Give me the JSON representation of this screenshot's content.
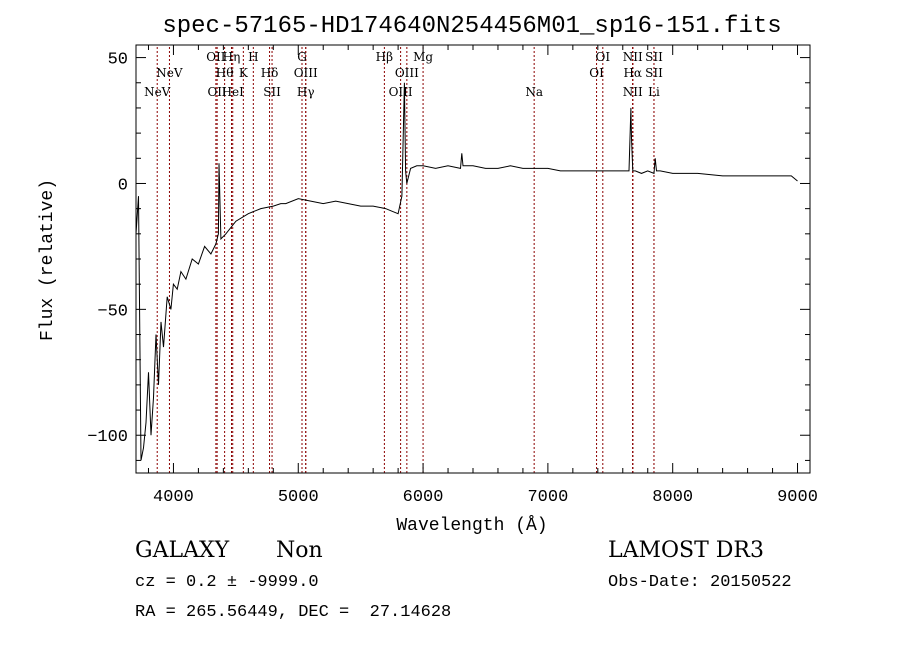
{
  "chart_data": {
    "type": "line",
    "title": "spec-57165-HD174640N254456M01_sp16-151.fits",
    "xlabel": "Wavelength (Å)",
    "ylabel": "Flux (relative)",
    "xlim": [
      3700,
      9100
    ],
    "ylim": [
      -115,
      55
    ],
    "x_ticks": [
      4000,
      5000,
      6000,
      7000,
      8000,
      9000
    ],
    "y_ticks": [
      -100,
      -50,
      0,
      50
    ],
    "grid": false,
    "line_color": "#000000",
    "marker_color": "#8b0000",
    "series": [
      {
        "x": [
          3700,
          3720,
          3740,
          3760,
          3780,
          3800,
          3820,
          3840,
          3860,
          3880,
          3900,
          3920,
          3950,
          3980,
          4000,
          4030,
          4060,
          4100,
          4150,
          4200,
          4250,
          4300,
          4340,
          4360,
          4365,
          4380,
          4420,
          4500,
          4600,
          4700,
          4800,
          4860,
          4900,
          5000,
          5100,
          5200,
          5300,
          5400,
          5500,
          5600,
          5700,
          5750,
          5800,
          5830,
          5850,
          5860,
          5870,
          5900,
          5950,
          6000,
          6100,
          6200,
          6300,
          6310,
          6320,
          6400,
          6500,
          6600,
          6700,
          6800,
          6900,
          7000,
          7100,
          7200,
          7300,
          7400,
          7500,
          7600,
          7650,
          7665,
          7670,
          7680,
          7700,
          7750,
          7800,
          7850,
          7860,
          7870,
          7900,
          8000,
          8200,
          8400,
          8600,
          8800,
          8900,
          8950,
          9000
        ],
        "y": [
          -20,
          -5,
          -110,
          -105,
          -95,
          -75,
          -100,
          -85,
          -60,
          -80,
          -55,
          -65,
          -45,
          -50,
          -40,
          -42,
          -35,
          -38,
          -30,
          -32,
          -25,
          -28,
          -24,
          -20,
          8,
          -22,
          -20,
          -15,
          -12,
          -10,
          -9,
          -8,
          -8,
          -6,
          -7,
          -8,
          -7,
          -8,
          -9,
          -9,
          -10,
          -11,
          -12,
          -5,
          40,
          5,
          0,
          6,
          7,
          7,
          6,
          7,
          6,
          12,
          7,
          7,
          6,
          6,
          7,
          6,
          6,
          6,
          5,
          5,
          5,
          5,
          5,
          5,
          5,
          30,
          18,
          5,
          5,
          4,
          5,
          4,
          10,
          5,
          5,
          4,
          4,
          3,
          3,
          3,
          3,
          3,
          1
        ]
      }
    ],
    "line_markers": [
      {
        "wl": 3870,
        "label": "NeV",
        "row": 2
      },
      {
        "wl": 3968,
        "label": "NeV",
        "row": 1
      },
      {
        "wl": 4340,
        "label": "OII",
        "row": 0
      },
      {
        "wl": 4350,
        "label": "OII",
        "row": 2
      },
      {
        "wl": 4410,
        "label": "Hθ",
        "row": 1
      },
      {
        "wl": 4465,
        "label": "Hη",
        "row": 0
      },
      {
        "wl": 4475,
        "label": "HeI",
        "row": 2
      },
      {
        "wl": 4560,
        "label": "K",
        "row": 1
      },
      {
        "wl": 4640,
        "label": "H",
        "row": 0
      },
      {
        "wl": 4770,
        "label": "Hδ",
        "row": 1
      },
      {
        "wl": 4790,
        "label": "SII",
        "row": 2
      },
      {
        "wl": 5030,
        "label": "G",
        "row": 0
      },
      {
        "wl": 5060,
        "label": "OIII",
        "row": 1
      },
      {
        "wl": 5060,
        "label": "Hγ",
        "row": 2
      },
      {
        "wl": 5690,
        "label": "Hβ",
        "row": 0
      },
      {
        "wl": 5820,
        "label": "OIII",
        "row": 2
      },
      {
        "wl": 5870,
        "label": "OIII",
        "row": 1
      },
      {
        "wl": 6000,
        "label": "Mg",
        "row": 0
      },
      {
        "wl": 6890,
        "label": "Na",
        "row": 2
      },
      {
        "wl": 7390,
        "label": "OI",
        "row": 1
      },
      {
        "wl": 7440,
        "label": "OI",
        "row": 0
      },
      {
        "wl": 7680,
        "label": "NII",
        "row": 0
      },
      {
        "wl": 7680,
        "label": "Hα",
        "row": 1
      },
      {
        "wl": 7680,
        "label": "NII",
        "row": 2
      },
      {
        "wl": 7850,
        "label": "SII",
        "row": 0
      },
      {
        "wl": 7850,
        "label": "SII",
        "row": 1
      },
      {
        "wl": 7850,
        "label": "Li",
        "row": 2
      }
    ]
  },
  "info": {
    "object_class": "GALAXY",
    "subclass": "Non",
    "survey": "LAMOST DR3",
    "redshift": "cz = 0.2 ± -9999.0",
    "obs_date": "Obs-Date: 20150522",
    "coords": "RA = 265.56449, DEC =  27.14628"
  }
}
